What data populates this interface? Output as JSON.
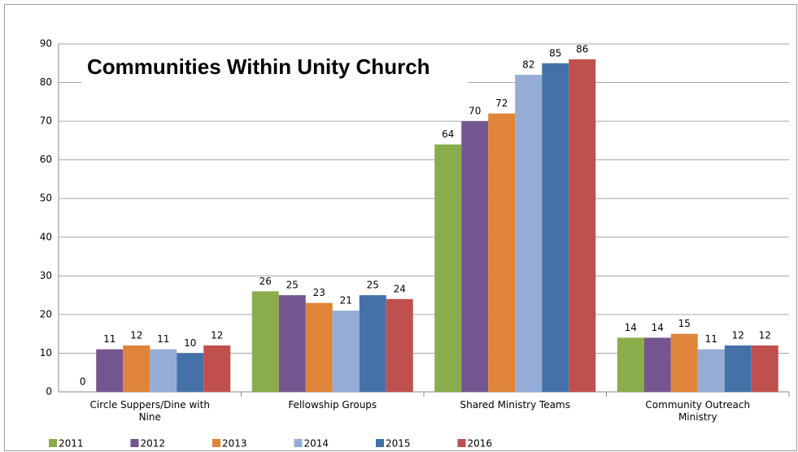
{
  "chart_data": {
    "type": "bar",
    "title": "Communities Within Unity Church",
    "categories": [
      "Circle Suppers/Dine with Nine",
      "Fellowship Groups",
      "Shared Ministry Teams",
      "Community Outreach Ministry"
    ],
    "series": [
      {
        "name": "2011",
        "color": "#8aac4a",
        "values": [
          0,
          26,
          64,
          14
        ]
      },
      {
        "name": "2012",
        "color": "#74558f",
        "values": [
          11,
          25,
          70,
          14
        ]
      },
      {
        "name": "2013",
        "color": "#e0843a",
        "values": [
          12,
          23,
          72,
          15
        ]
      },
      {
        "name": "2014",
        "color": "#95acd6",
        "values": [
          11,
          21,
          82,
          11
        ]
      },
      {
        "name": "2015",
        "color": "#4472a8",
        "values": [
          10,
          25,
          85,
          12
        ]
      },
      {
        "name": "2016",
        "color": "#c0504d",
        "values": [
          12,
          24,
          86,
          12
        ]
      }
    ],
    "ylim": [
      0,
      90
    ],
    "yticks": [
      0,
      10,
      20,
      30,
      40,
      50,
      60,
      70,
      80,
      90
    ],
    "grid": true,
    "legend": "bottom"
  }
}
